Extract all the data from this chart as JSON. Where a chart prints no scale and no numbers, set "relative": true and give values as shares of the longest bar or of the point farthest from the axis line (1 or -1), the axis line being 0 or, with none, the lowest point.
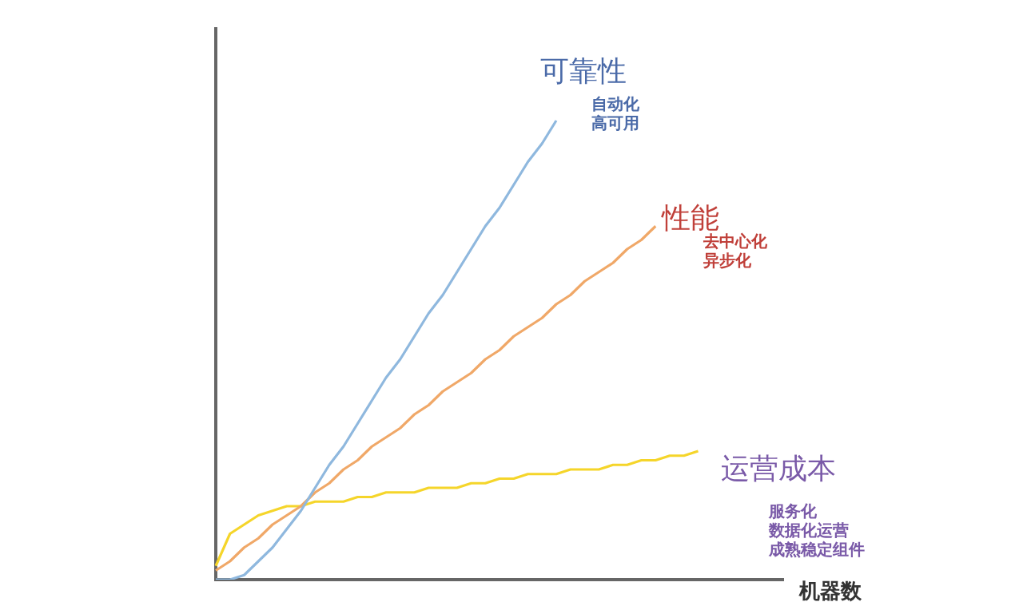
{
  "chart_data": {
    "type": "line",
    "relative": true,
    "xlabel": "机器数",
    "grid": false,
    "legend": false,
    "tick_labels": false,
    "marker": "none",
    "line_style": "solid",
    "categories": [
      null,
      null,
      null,
      null,
      null,
      null,
      null,
      null,
      null,
      null,
      null,
      null,
      null,
      null,
      null,
      null,
      null,
      null,
      null,
      null,
      null,
      null,
      null,
      null,
      null,
      null,
      null,
      null,
      null,
      null,
      null,
      null,
      null,
      null,
      null,
      null,
      null,
      null,
      null,
      null,
      null
    ],
    "series": [
      {
        "name": "可靠性",
        "color": "#8fb8de",
        "values": [
          0,
          0,
          0.01,
          0.04,
          0.07,
          0.11,
          0.15,
          0.2,
          0.25,
          0.29,
          0.34,
          0.39,
          0.44,
          0.48,
          0.53,
          0.58,
          0.62,
          0.67,
          0.72,
          0.77,
          0.81,
          0.86,
          0.91,
          0.95,
          1,
          null,
          null,
          null,
          null,
          null,
          null,
          null,
          null,
          null,
          null,
          null,
          null,
          null,
          null,
          null,
          null
        ]
      },
      {
        "name": "性能",
        "color": "#f0a868",
        "values": [
          0.02,
          0.04,
          0.07,
          0.09,
          0.12,
          0.14,
          0.16,
          0.19,
          0.21,
          0.24,
          0.26,
          0.29,
          0.31,
          0.33,
          0.36,
          0.38,
          0.41,
          0.43,
          0.45,
          0.48,
          0.5,
          0.53,
          0.55,
          0.57,
          0.6,
          0.62,
          0.65,
          0.67,
          0.69,
          0.72,
          0.74,
          0.77,
          null,
          null,
          null,
          null,
          null,
          null,
          null,
          null,
          null
        ]
      },
      {
        "name": "运营成本",
        "color": "#f5d52a",
        "values": [
          0.03,
          0.1,
          0.12,
          0.14,
          0.15,
          0.16,
          0.16,
          0.17,
          0.17,
          0.17,
          0.18,
          0.18,
          0.19,
          0.19,
          0.19,
          0.2,
          0.2,
          0.2,
          0.21,
          0.21,
          0.22,
          0.22,
          0.23,
          0.23,
          0.23,
          0.24,
          0.24,
          0.24,
          0.25,
          0.25,
          0.26,
          0.26,
          0.27,
          0.27,
          0.28,
          null,
          null,
          null,
          null,
          null,
          null
        ]
      }
    ],
    "annotations": [
      "自动化",
      "高可用",
      "去中心化",
      "异步化",
      "服务化",
      "数据化运营",
      "成熟稳定组件"
    ]
  }
}
